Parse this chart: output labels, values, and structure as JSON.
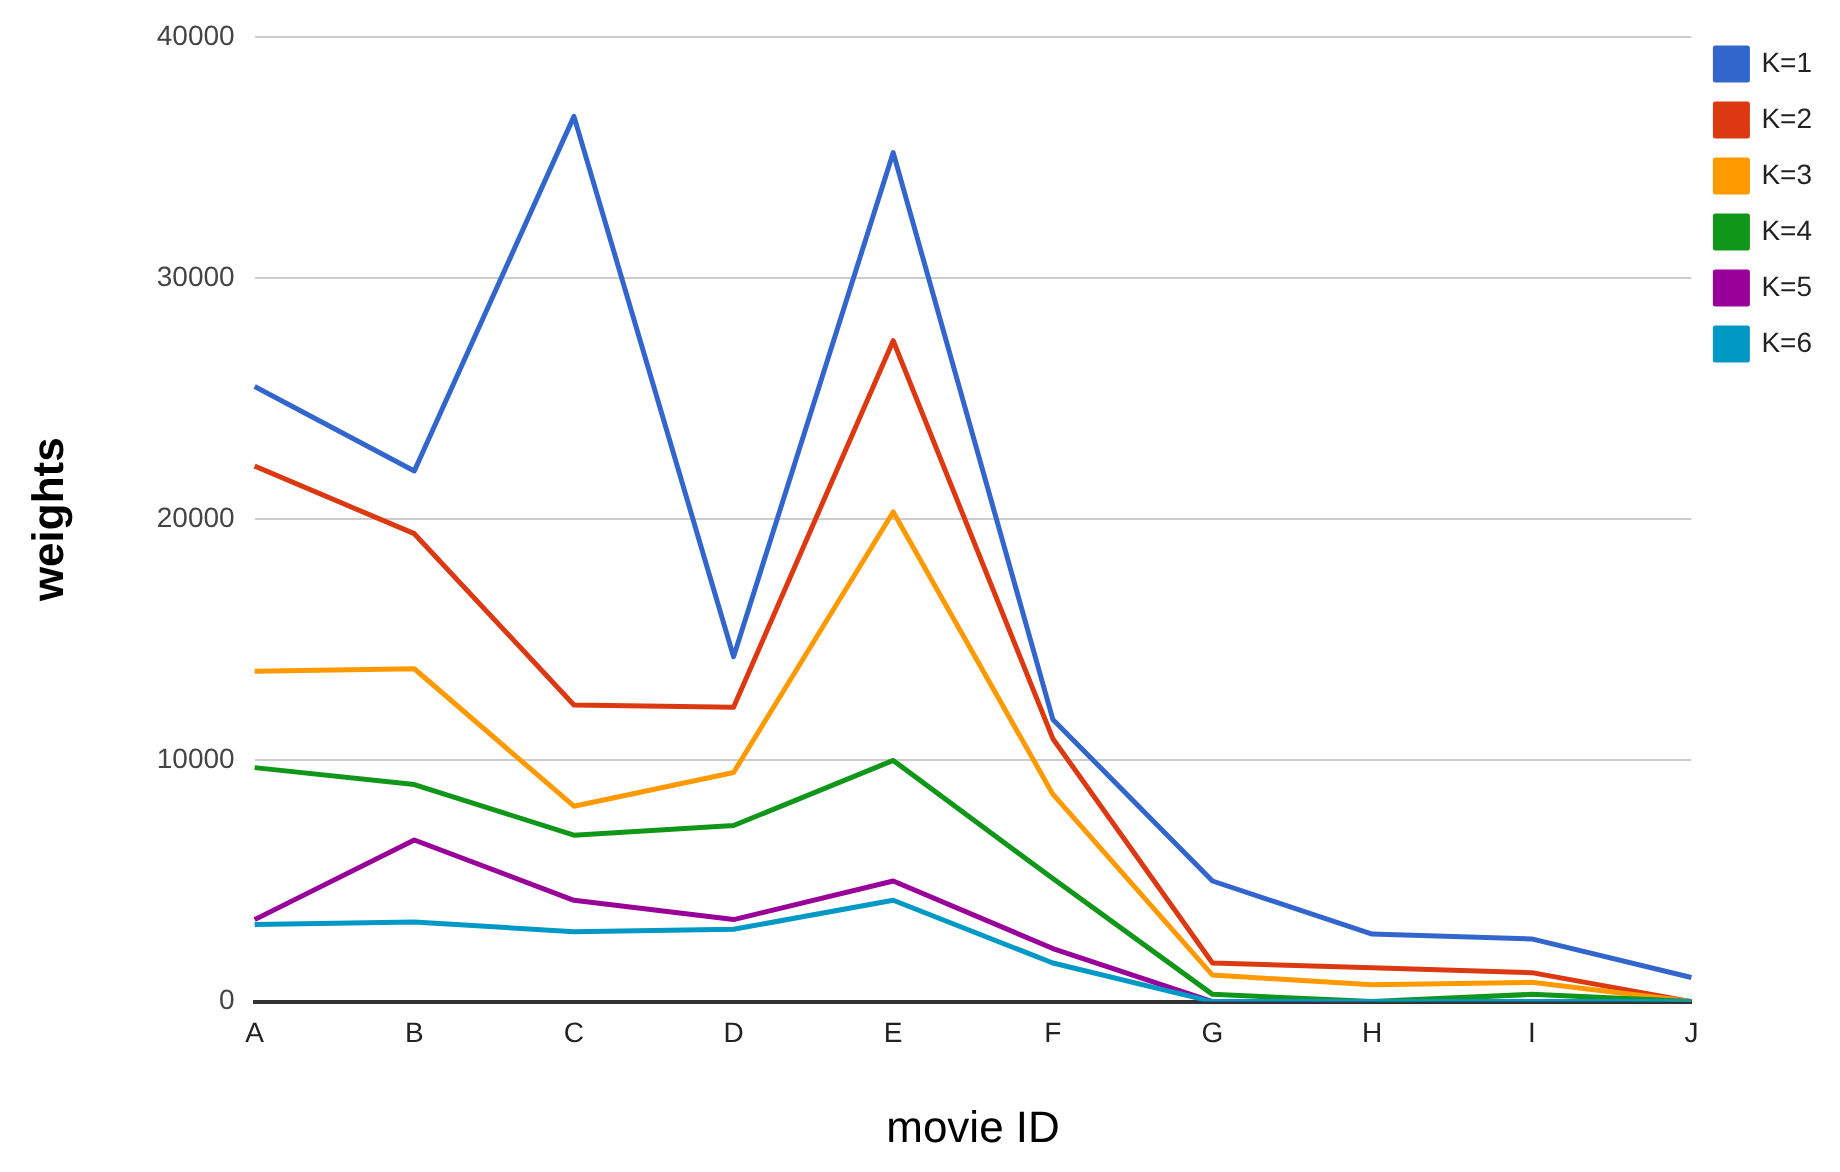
{
  "chart_data": {
    "type": "line",
    "xlabel": "movie ID",
    "ylabel": "weights",
    "categories": [
      "A",
      "B",
      "C",
      "D",
      "E",
      "F",
      "G",
      "H",
      "I",
      "J"
    ],
    "series": [
      {
        "name": "K=1",
        "color": "#3366cc",
        "values": [
          25500,
          22000,
          36700,
          14300,
          35200,
          11700,
          5000,
          2800,
          2600,
          1000
        ]
      },
      {
        "name": "K=2",
        "color": "#dc3912",
        "values": [
          22200,
          19400,
          12300,
          12200,
          27400,
          10900,
          1600,
          1400,
          1200,
          0
        ]
      },
      {
        "name": "K=3",
        "color": "#ff9900",
        "values": [
          13700,
          13800,
          8100,
          9500,
          20300,
          8600,
          1100,
          700,
          800,
          0
        ]
      },
      {
        "name": "K=4",
        "color": "#109618",
        "values": [
          9700,
          9000,
          6900,
          7300,
          10000,
          5100,
          300,
          0,
          300,
          0
        ]
      },
      {
        "name": "K=5",
        "color": "#990099",
        "values": [
          3400,
          6700,
          4200,
          3400,
          5000,
          2200,
          0,
          0,
          null,
          null
        ]
      },
      {
        "name": "K=6",
        "color": "#0099c6",
        "values": [
          3200,
          3300,
          2900,
          3000,
          4200,
          1600,
          0,
          0,
          0,
          0
        ]
      }
    ],
    "ylim": [
      0,
      40000
    ],
    "yticks": [
      0,
      10000,
      20000,
      30000,
      40000
    ],
    "grid": "y",
    "legend": "top right",
    "marker": "none",
    "line_style": "solid"
  }
}
